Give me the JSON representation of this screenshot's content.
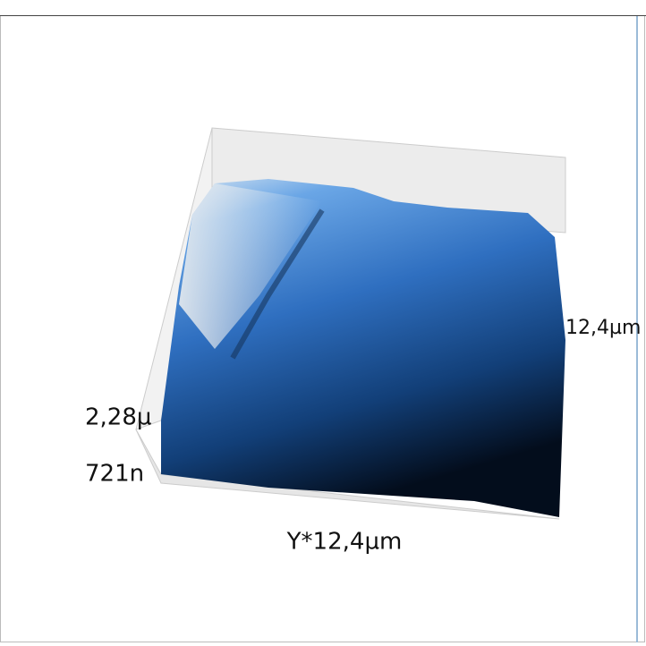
{
  "axes": {
    "z_max_label": "2,28µ",
    "z_min_label": "721n",
    "x_label": "12,4µm",
    "y_label": "Y*12,4µm"
  }
}
